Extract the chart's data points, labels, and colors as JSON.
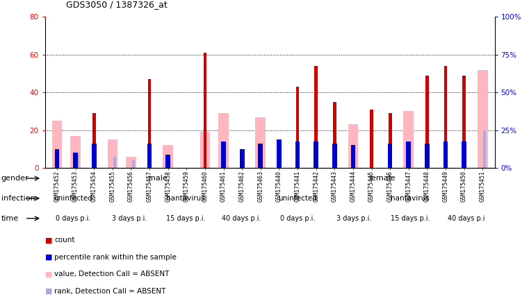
{
  "title": "GDS3050 / 1387326_at",
  "samples": [
    "GSM175452",
    "GSM175453",
    "GSM175454",
    "GSM175455",
    "GSM175456",
    "GSM175457",
    "GSM175458",
    "GSM175459",
    "GSM175460",
    "GSM175461",
    "GSM175462",
    "GSM175463",
    "GSM175440",
    "GSM175441",
    "GSM175442",
    "GSM175443",
    "GSM175444",
    "GSM175445",
    "GSM175446",
    "GSM175447",
    "GSM175448",
    "GSM175449",
    "GSM175450",
    "GSM175451"
  ],
  "count_values": [
    0,
    0,
    29,
    0,
    0,
    47,
    0,
    0,
    61,
    0,
    0,
    0,
    0,
    43,
    54,
    35,
    0,
    31,
    29,
    0,
    49,
    54,
    49,
    0
  ],
  "absent_values": [
    25,
    17,
    0,
    15,
    6,
    0,
    12,
    0,
    19,
    29,
    0,
    27,
    0,
    0,
    0,
    0,
    23,
    0,
    0,
    30,
    0,
    0,
    0,
    52
  ],
  "rank_values": [
    10,
    8,
    13,
    0,
    0,
    13,
    7,
    0,
    0,
    14,
    10,
    13,
    15,
    14,
    14,
    13,
    12,
    0,
    13,
    14,
    13,
    14,
    14,
    0
  ],
  "absent_rank_values": [
    0,
    8,
    0,
    6,
    4,
    0,
    0,
    0,
    0,
    0,
    0,
    0,
    0,
    0,
    0,
    0,
    0,
    0,
    0,
    0,
    0,
    0,
    0,
    20
  ],
  "ylim_left": [
    0,
    80
  ],
  "ylim_right": [
    0,
    100
  ],
  "yticks_left": [
    0,
    20,
    40,
    60,
    80
  ],
  "yticks_right": [
    0,
    25,
    50,
    75,
    100
  ],
  "ytick_labels_left": [
    "0",
    "20",
    "40",
    "60",
    "80"
  ],
  "ytick_labels_right": [
    "0%",
    "25%",
    "50%",
    "75%",
    "100%"
  ],
  "bar_color_red": "#CC0000",
  "bar_color_pink": "#FFB6C1",
  "bar_color_blue": "#0000CC",
  "bar_color_lightblue": "#AAAADD",
  "gender_male_color": "#99EE99",
  "gender_female_color": "#55CC55",
  "infection_uninfected_color": "#BBA8DD",
  "infection_hantavirus_color": "#8866BB",
  "time_0_color": "#F0A898",
  "time_3_color": "#F0A898",
  "time_15_color": "#F0A898",
  "time_40_color": "#CC7766",
  "legend_colors": [
    "#CC0000",
    "#0000CC",
    "#FFB6C1",
    "#AAAADD"
  ],
  "legend_labels": [
    "count",
    "percentile rank within the sample",
    "value, Detection Call = ABSENT",
    "rank, Detection Call = ABSENT"
  ]
}
